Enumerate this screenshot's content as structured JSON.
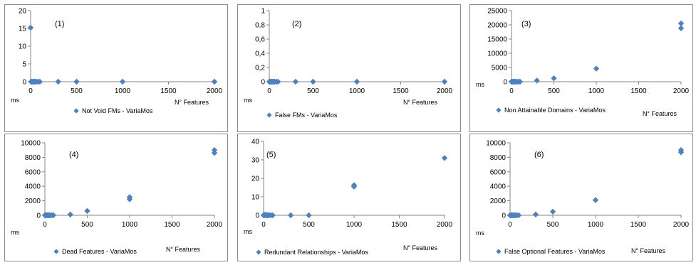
{
  "colors": {
    "marker": "#4f81bd",
    "axis": "#868686",
    "border": "#8c8c8c"
  },
  "chart_data": [
    {
      "type": "scatter",
      "panel_label": "(1)",
      "ylabel": "ms",
      "xlabel": "N° Features",
      "legend": "Not Void FMs - VariaMos",
      "yticks": [
        "0",
        "5",
        "10",
        "15",
        "20"
      ],
      "xticks": [
        "0",
        "500",
        "1000",
        "1500",
        "2000"
      ],
      "xlim": [
        0,
        2000
      ],
      "ylim": [
        0,
        20
      ],
      "x": [
        0,
        5,
        10,
        20,
        30,
        40,
        50,
        60,
        80,
        100,
        300,
        500,
        1000,
        2000
      ],
      "y": [
        15.2,
        0,
        0,
        0,
        0,
        0,
        0,
        0,
        0,
        0,
        0,
        0,
        0,
        0
      ]
    },
    {
      "type": "scatter",
      "panel_label": "(2)",
      "ylabel": "ms",
      "xlabel": "N° Features",
      "legend": "False FMs - VariaMos",
      "yticks": [
        "0",
        "0,2",
        "0,4",
        "0,6",
        "0,8",
        "1"
      ],
      "xticks": [
        "0",
        "500",
        "1000",
        "1500",
        "2000"
      ],
      "xlim": [
        0,
        2000
      ],
      "ylim": [
        0,
        1
      ],
      "x": [
        0,
        5,
        10,
        20,
        30,
        40,
        50,
        60,
        80,
        100,
        300,
        500,
        1000,
        2000
      ],
      "y": [
        0,
        0,
        0,
        0,
        0,
        0,
        0,
        0,
        0,
        0,
        0,
        0,
        0,
        0
      ]
    },
    {
      "type": "scatter",
      "panel_label": "(3)",
      "ylabel": "ms",
      "xlabel": "N° Features",
      "legend": "Non Attainable Domains - VariaMos",
      "yticks": [
        "0",
        "5000",
        "10000",
        "15000",
        "20000",
        "25000"
      ],
      "xticks": [
        "0",
        "500",
        "1000",
        "1500",
        "2000"
      ],
      "xlim": [
        0,
        2000
      ],
      "ylim": [
        0,
        25000
      ],
      "x": [
        0,
        5,
        10,
        20,
        30,
        40,
        50,
        60,
        80,
        100,
        300,
        500,
        1000,
        2000,
        2000
      ],
      "y": [
        0,
        0,
        0,
        0,
        0,
        0,
        0,
        0,
        0,
        0,
        400,
        1200,
        4600,
        18800,
        20500
      ]
    },
    {
      "type": "scatter",
      "panel_label": "(4)",
      "ylabel": "ms",
      "xlabel": "N° Features",
      "legend": "Dead Features - VariaMos",
      "yticks": [
        "0",
        "2000",
        "4000",
        "6000",
        "8000",
        "10000"
      ],
      "xticks": [
        "0",
        "500",
        "1000",
        "1500",
        "2000"
      ],
      "xlim": [
        0,
        2000
      ],
      "ylim": [
        0,
        10000
      ],
      "x": [
        0,
        5,
        10,
        20,
        30,
        40,
        50,
        60,
        80,
        100,
        300,
        500,
        1000,
        1000,
        2000,
        2000
      ],
      "y": [
        0,
        0,
        0,
        0,
        0,
        0,
        0,
        0,
        0,
        0,
        100,
        600,
        2200,
        2500,
        8600,
        9000
      ]
    },
    {
      "type": "scatter",
      "panel_label": "(5)",
      "ylabel": "ms",
      "xlabel": "N° Features",
      "legend": "Redundant Relationships - VariaMos",
      "yticks": [
        "0",
        "10",
        "20",
        "30",
        "40"
      ],
      "xticks": [
        "0",
        "500",
        "1000",
        "1500",
        "2000"
      ],
      "xlim": [
        0,
        2000
      ],
      "ylim": [
        0,
        40
      ],
      "x": [
        0,
        5,
        10,
        20,
        30,
        40,
        50,
        60,
        80,
        100,
        300,
        500,
        1000,
        1000,
        2000
      ],
      "y": [
        0,
        0.2,
        0,
        0.3,
        0,
        0,
        0.1,
        0,
        0,
        0,
        0,
        0,
        15.5,
        16.3,
        31
      ]
    },
    {
      "type": "scatter",
      "panel_label": "(6)",
      "ylabel": "ms",
      "xlabel": "N° Features",
      "legend": "False Optional Features - VariaMos",
      "yticks": [
        "0",
        "2000",
        "4000",
        "6000",
        "8000",
        "10000"
      ],
      "xticks": [
        "0",
        "500",
        "1000",
        "1500",
        "2000"
      ],
      "xlim": [
        0,
        2000
      ],
      "ylim": [
        0,
        10000
      ],
      "x": [
        0,
        5,
        10,
        20,
        30,
        40,
        50,
        60,
        80,
        100,
        300,
        500,
        1000,
        2000,
        2000
      ],
      "y": [
        0,
        0,
        0,
        0,
        0,
        0,
        0,
        0,
        0,
        0,
        100,
        500,
        2100,
        8700,
        9000
      ]
    }
  ]
}
